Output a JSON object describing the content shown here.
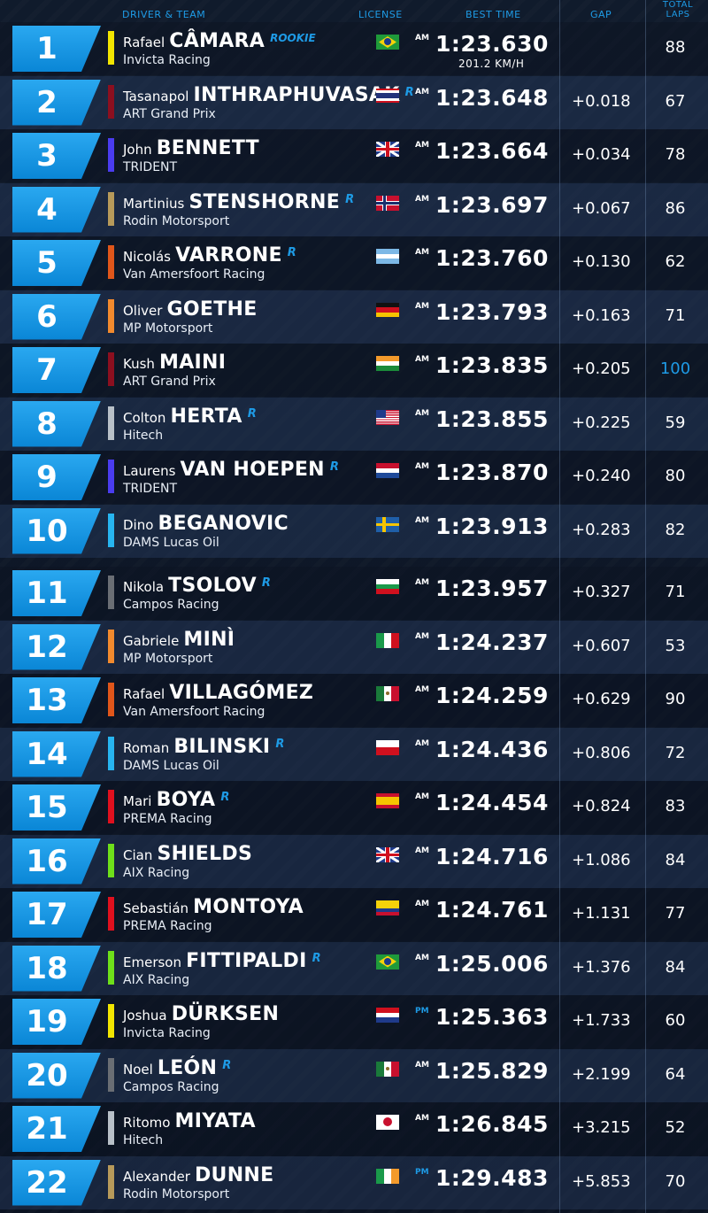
{
  "headers": {
    "driver_team": "DRIVER & TEAM",
    "license": "LICENSE",
    "best_time": "BEST TIME",
    "gap": "GAP",
    "total_laps_1": "TOTAL",
    "total_laps_2": "LAPS"
  },
  "colors": {
    "accent": "#1e9be6",
    "position_box": "#1699e6"
  },
  "rows": [
    {
      "pos": "1",
      "first": "Rafael",
      "last": "CÂMARA",
      "rookie": "ROOKIE",
      "team": "Invicta Racing",
      "team_color": "#f2e500",
      "flag": "brazil",
      "license": "AM",
      "best": "1:23.630",
      "speed": "201.2 KM/H",
      "gap": "",
      "laps": "88"
    },
    {
      "pos": "2",
      "first": "Tasanapol",
      "last": "INTHRAPHUVASAK",
      "rookie": "R",
      "team": "ART Grand Prix",
      "team_color": "#8c0f1f",
      "flag": "thailand",
      "license": "AM",
      "best": "1:23.648",
      "gap": "+0.018",
      "laps": "67"
    },
    {
      "pos": "3",
      "first": "John",
      "last": "BENNETT",
      "rookie": "",
      "team": "TRIDENT",
      "team_color": "#4a3cf0",
      "flag": "uk",
      "license": "AM",
      "best": "1:23.664",
      "gap": "+0.034",
      "laps": "78"
    },
    {
      "pos": "4",
      "first": "Martinius",
      "last": "STENSHORNE",
      "rookie": "R",
      "team": "Rodin Motorsport",
      "team_color": "#b79a5a",
      "flag": "norway",
      "license": "AM",
      "best": "1:23.697",
      "gap": "+0.067",
      "laps": "86"
    },
    {
      "pos": "5",
      "first": "Nicolás",
      "last": "VARRONE",
      "rookie": "R",
      "team": "Van Amersfoort Racing",
      "team_color": "#e0561a",
      "flag": "argentina",
      "license": "AM",
      "best": "1:23.760",
      "gap": "+0.130",
      "laps": "62"
    },
    {
      "pos": "6",
      "first": "Oliver",
      "last": "GOETHE",
      "rookie": "",
      "team": "MP Motorsport",
      "team_color": "#f28a2e",
      "flag": "germany",
      "license": "AM",
      "best": "1:23.793",
      "gap": "+0.163",
      "laps": "71"
    },
    {
      "pos": "7",
      "first": "Kush",
      "last": "MAINI",
      "rookie": "",
      "team": "ART Grand Prix",
      "team_color": "#8c0f1f",
      "flag": "india",
      "license": "AM",
      "best": "1:23.835",
      "gap": "+0.205",
      "laps": "100",
      "laps_hl": true
    },
    {
      "pos": "8",
      "first": "Colton",
      "last": "HERTA",
      "rookie": "R",
      "team": "Hitech",
      "team_color": "#b8c0c8",
      "flag": "usa",
      "license": "AM",
      "best": "1:23.855",
      "gap": "+0.225",
      "laps": "59"
    },
    {
      "pos": "9",
      "first": "Laurens",
      "last": "VAN HOEPEN",
      "rookie": "R",
      "team": "TRIDENT",
      "team_color": "#4a3cf0",
      "flag": "netherlands",
      "license": "AM",
      "best": "1:23.870",
      "gap": "+0.240",
      "laps": "80"
    },
    {
      "pos": "10",
      "first": "Dino",
      "last": "BEGANOVIC",
      "rookie": "",
      "team": "DAMS Lucas Oil",
      "team_color": "#27b5f0",
      "flag": "sweden",
      "license": "AM",
      "best": "1:23.913",
      "gap": "+0.283",
      "laps": "82"
    },
    {
      "pos": "11",
      "first": "Nikola",
      "last": "TSOLOV",
      "rookie": "R",
      "team": "Campos Racing",
      "team_color": "#6a6e74",
      "flag": "bulgaria",
      "license": "AM",
      "best": "1:23.957",
      "gap": "+0.327",
      "laps": "71"
    },
    {
      "pos": "12",
      "first": "Gabriele",
      "last": "MINÌ",
      "rookie": "",
      "team": "MP Motorsport",
      "team_color": "#f28a2e",
      "flag": "italy",
      "license": "AM",
      "best": "1:24.237",
      "gap": "+0.607",
      "laps": "53"
    },
    {
      "pos": "13",
      "first": "Rafael",
      "last": "VILLAGÓMEZ",
      "rookie": "",
      "team": "Van Amersfoort Racing",
      "team_color": "#e0561a",
      "flag": "mexico",
      "license": "AM",
      "best": "1:24.259",
      "gap": "+0.629",
      "laps": "90"
    },
    {
      "pos": "14",
      "first": "Roman",
      "last": "BILINSKI",
      "rookie": "R",
      "team": "DAMS Lucas Oil",
      "team_color": "#27b5f0",
      "flag": "poland",
      "license": "AM",
      "best": "1:24.436",
      "gap": "+0.806",
      "laps": "72"
    },
    {
      "pos": "15",
      "first": "Mari",
      "last": "BOYA",
      "rookie": "R",
      "team": "PREMA Racing",
      "team_color": "#e0101e",
      "flag": "spain",
      "license": "AM",
      "best": "1:24.454",
      "gap": "+0.824",
      "laps": "83"
    },
    {
      "pos": "16",
      "first": "Cian",
      "last": "SHIELDS",
      "rookie": "",
      "team": "AIX Racing",
      "team_color": "#6ee01a",
      "flag": "uk",
      "license": "AM",
      "best": "1:24.716",
      "gap": "+1.086",
      "laps": "84"
    },
    {
      "pos": "17",
      "first": "Sebastián",
      "last": "MONTOYA",
      "rookie": "",
      "team": "PREMA Racing",
      "team_color": "#e0101e",
      "flag": "colombia",
      "license": "AM",
      "best": "1:24.761",
      "gap": "+1.131",
      "laps": "77"
    },
    {
      "pos": "18",
      "first": "Emerson",
      "last": "FITTIPALDI",
      "rookie": "R",
      "team": "AIX Racing",
      "team_color": "#6ee01a",
      "flag": "brazil",
      "license": "AM",
      "best": "1:25.006",
      "gap": "+1.376",
      "laps": "84"
    },
    {
      "pos": "19",
      "first": "Joshua",
      "last": "DÜRKSEN",
      "rookie": "",
      "team": "Invicta Racing",
      "team_color": "#f2e500",
      "flag": "paraguay",
      "license": "PM",
      "best": "1:25.363",
      "gap": "+1.733",
      "laps": "60"
    },
    {
      "pos": "20",
      "first": "Noel",
      "last": "LEÓN",
      "rookie": "R",
      "team": "Campos Racing",
      "team_color": "#6a6e74",
      "flag": "mexico",
      "license": "AM",
      "best": "1:25.829",
      "gap": "+2.199",
      "laps": "64"
    },
    {
      "pos": "21",
      "first": "Ritomo",
      "last": "MIYATA",
      "rookie": "",
      "team": "Hitech",
      "team_color": "#b8c0c8",
      "flag": "japan",
      "license": "AM",
      "best": "1:26.845",
      "gap": "+3.215",
      "laps": "52"
    },
    {
      "pos": "22",
      "first": "Alexander",
      "last": "DUNNE",
      "rookie": "",
      "team": "Rodin Motorsport",
      "team_color": "#b79a5a",
      "flag": "ireland",
      "license": "PM",
      "best": "1:29.483",
      "gap": "+5.853",
      "laps": "70"
    }
  ]
}
